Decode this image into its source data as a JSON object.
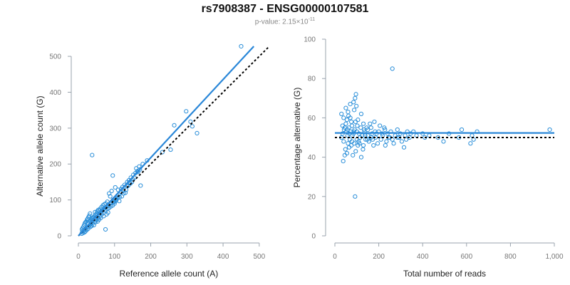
{
  "title": "rs7908387 - ENSG00000107581",
  "subtitle": {
    "prefix": "p-value: 2.15×10",
    "exponent": "-11"
  },
  "colors": {
    "points": "#2b8fd9",
    "fit_line": "#2a87d8",
    "reference_line": "#000000"
  },
  "chart_data": [
    {
      "type": "scatter",
      "xlabel": "Reference allele count (A)",
      "ylabel": "Alternative allele count (G)",
      "xlim": [
        0,
        520
      ],
      "ylim": [
        0,
        520
      ],
      "xticks": [
        0,
        100,
        200,
        300,
        400,
        500
      ],
      "yticks": [
        0,
        100,
        200,
        300,
        400,
        500
      ],
      "xtick_labels": [
        "0",
        "100",
        "200",
        "300",
        "400",
        "500"
      ],
      "ytick_labels": [
        "0",
        "100",
        "200",
        "300",
        "400",
        "500"
      ],
      "fit_line": {
        "x": [
          0,
          485
        ],
        "y": [
          0,
          528
        ]
      },
      "reference_line": {
        "x": [
          0,
          525
        ],
        "y": [
          0,
          525
        ]
      },
      "points": [
        [
          450,
          528
        ],
        [
          298,
          347
        ],
        [
          265,
          308
        ],
        [
          310,
          318
        ],
        [
          315,
          305
        ],
        [
          328,
          286
        ],
        [
          255,
          240
        ],
        [
          232,
          233
        ],
        [
          190,
          210
        ],
        [
          178,
          200
        ],
        [
          168,
          193
        ],
        [
          160,
          188
        ],
        [
          163,
          180
        ],
        [
          152,
          170
        ],
        [
          158,
          175
        ],
        [
          145,
          162
        ],
        [
          140,
          155
        ],
        [
          135,
          150
        ],
        [
          128,
          142
        ],
        [
          122,
          136
        ],
        [
          118,
          130
        ],
        [
          110,
          128
        ],
        [
          102,
          135
        ],
        [
          95,
          168
        ],
        [
          38,
          225
        ],
        [
          172,
          140
        ],
        [
          75,
          18
        ],
        [
          85,
          118
        ],
        [
          88,
          110
        ],
        [
          92,
          125
        ],
        [
          96,
          100
        ],
        [
          98,
          95
        ],
        [
          100,
          90
        ],
        [
          104,
          98
        ],
        [
          108,
          105
        ],
        [
          112,
          115
        ],
        [
          80,
          95
        ],
        [
          76,
          90
        ],
        [
          72,
          88
        ],
        [
          68,
          85
        ],
        [
          64,
          80
        ],
        [
          60,
          75
        ],
        [
          58,
          70
        ],
        [
          55,
          72
        ],
        [
          52,
          68
        ],
        [
          50,
          62
        ],
        [
          48,
          58
        ],
        [
          46,
          66
        ],
        [
          44,
          55
        ],
        [
          42,
          52
        ],
        [
          40,
          50
        ],
        [
          38,
          48
        ],
        [
          36,
          45
        ],
        [
          34,
          42
        ],
        [
          32,
          62
        ],
        [
          30,
          56
        ],
        [
          28,
          52
        ],
        [
          26,
          48
        ],
        [
          24,
          45
        ],
        [
          22,
          40
        ],
        [
          20,
          38
        ],
        [
          18,
          35
        ],
        [
          16,
          30
        ],
        [
          14,
          25
        ],
        [
          12,
          22
        ],
        [
          10,
          18
        ],
        [
          15,
          15
        ],
        [
          20,
          20
        ],
        [
          25,
          25
        ],
        [
          30,
          28
        ],
        [
          35,
          33
        ],
        [
          40,
          35
        ],
        [
          45,
          40
        ],
        [
          50,
          45
        ],
        [
          55,
          50
        ],
        [
          60,
          55
        ],
        [
          65,
          60
        ],
        [
          70,
          65
        ],
        [
          75,
          70
        ],
        [
          80,
          75
        ],
        [
          85,
          78
        ],
        [
          90,
          82
        ],
        [
          95,
          85
        ],
        [
          100,
          95
        ],
        [
          105,
          100
        ],
        [
          120,
          110
        ],
        [
          125,
          118
        ],
        [
          130,
          120
        ],
        [
          135,
          138
        ],
        [
          142,
          148
        ],
        [
          148,
          150
        ],
        [
          150,
          158
        ],
        [
          155,
          162
        ],
        [
          165,
          178
        ],
        [
          170,
          185
        ],
        [
          82,
          65
        ],
        [
          78,
          60
        ],
        [
          70,
          55
        ],
        [
          62,
          50
        ],
        [
          57,
          45
        ],
        [
          53,
          40
        ],
        [
          47,
          38
        ],
        [
          43,
          30
        ],
        [
          37,
          28
        ],
        [
          33,
          25
        ],
        [
          27,
          20
        ],
        [
          23,
          16
        ],
        [
          19,
          12
        ],
        [
          17,
          10
        ],
        [
          13,
          8
        ],
        [
          11,
          12
        ],
        [
          9,
          6
        ],
        [
          26,
          35
        ],
        [
          31,
          40
        ],
        [
          36,
          38
        ],
        [
          41,
          44
        ],
        [
          46,
          48
        ],
        [
          51,
          52
        ],
        [
          56,
          60
        ],
        [
          61,
          65
        ],
        [
          66,
          70
        ],
        [
          71,
          76
        ],
        [
          76,
          80
        ],
        [
          81,
          84
        ],
        [
          86,
          88
        ],
        [
          91,
          92
        ],
        [
          96,
          96
        ],
        [
          102,
          102
        ],
        [
          108,
          112
        ],
        [
          114,
          108
        ],
        [
          118,
          122
        ],
        [
          124,
          126
        ],
        [
          132,
          128
        ],
        [
          138,
          140
        ],
        [
          144,
          146
        ],
        [
          113,
          97
        ]
      ]
    },
    {
      "type": "scatter",
      "xlabel": "Total number of reads",
      "ylabel": "Percentage alternative (G)",
      "xlim": [
        0,
        1000
      ],
      "ylim": [
        0,
        100
      ],
      "xticks": [
        0,
        200,
        400,
        600,
        800,
        1000
      ],
      "yticks": [
        0,
        20,
        40,
        60,
        80,
        100
      ],
      "xtick_labels": [
        "0",
        "200",
        "400",
        "600",
        "800",
        "1,000"
      ],
      "ytick_labels": [
        "0",
        "20",
        "40",
        "60",
        "80",
        "100"
      ],
      "fit_line": {
        "x": [
          0,
          1000
        ],
        "y": [
          52.3,
          52.3
        ]
      },
      "reference_line": {
        "x": [
          0,
          1000
        ],
        "y": [
          50,
          50
        ]
      },
      "points": [
        [
          262,
          85
        ],
        [
          92,
          20
        ],
        [
          979,
          54
        ],
        [
          96,
          72
        ],
        [
          92,
          70
        ],
        [
          85,
          68
        ],
        [
          70,
          67
        ],
        [
          98,
          66
        ],
        [
          50,
          65
        ],
        [
          60,
          63
        ],
        [
          88,
          64
        ],
        [
          30,
          62
        ],
        [
          40,
          60
        ],
        [
          55,
          59
        ],
        [
          62,
          61
        ],
        [
          120,
          62
        ],
        [
          75,
          58
        ],
        [
          105,
          59
        ],
        [
          130,
          57
        ],
        [
          145,
          55
        ],
        [
          160,
          57
        ],
        [
          180,
          58
        ],
        [
          205,
          56
        ],
        [
          225,
          55
        ],
        [
          35,
          56
        ],
        [
          45,
          55
        ],
        [
          52,
          53
        ],
        [
          58,
          54
        ],
        [
          65,
          52
        ],
        [
          72,
          53
        ],
        [
          80,
          51
        ],
        [
          85,
          52
        ],
        [
          90,
          54
        ],
        [
          100,
          53
        ],
        [
          110,
          52
        ],
        [
          115,
          50
        ],
        [
          125,
          51
        ],
        [
          135,
          53
        ],
        [
          140,
          49
        ],
        [
          150,
          51
        ],
        [
          155,
          48
        ],
        [
          165,
          50
        ],
        [
          170,
          52
        ],
        [
          185,
          50
        ],
        [
          195,
          47
        ],
        [
          210,
          49
        ],
        [
          218,
          51
        ],
        [
          235,
          48
        ],
        [
          240,
          52
        ],
        [
          250,
          50
        ],
        [
          255,
          53
        ],
        [
          268,
          47
        ],
        [
          275,
          51
        ],
        [
          285,
          50
        ],
        [
          298,
          52
        ],
        [
          305,
          48
        ],
        [
          315,
          45
        ],
        [
          320,
          51
        ],
        [
          330,
          53
        ],
        [
          340,
          50
        ],
        [
          345,
          52
        ],
        [
          358,
          53
        ],
        [
          372,
          51
        ],
        [
          400,
          52
        ],
        [
          410,
          50
        ],
        [
          430,
          51
        ],
        [
          470,
          50
        ],
        [
          495,
          48
        ],
        [
          520,
          52
        ],
        [
          565,
          50
        ],
        [
          578,
          54
        ],
        [
          618,
          47
        ],
        [
          625,
          51
        ],
        [
          632,
          49
        ],
        [
          648,
          53
        ],
        [
          30,
          50
        ],
        [
          40,
          48
        ],
        [
          48,
          44
        ],
        [
          55,
          42
        ],
        [
          65,
          45
        ],
        [
          75,
          46
        ],
        [
          82,
          41
        ],
        [
          95,
          43
        ],
        [
          105,
          46
        ],
        [
          112,
          47
        ],
        [
          120,
          40
        ],
        [
          128,
          44
        ],
        [
          38,
          38
        ],
        [
          45,
          41
        ],
        [
          60,
          47
        ],
        [
          68,
          49
        ],
        [
          78,
          48
        ],
        [
          88,
          47
        ],
        [
          100,
          49
        ],
        [
          108,
          48
        ],
        [
          130,
          46
        ],
        [
          138,
          51
        ],
        [
          148,
          49
        ],
        [
          176,
          46
        ],
        [
          190,
          52
        ],
        [
          200,
          53
        ],
        [
          230,
          46
        ],
        [
          245,
          50
        ],
        [
          262,
          49
        ],
        [
          293,
          50
        ],
        [
          325,
          49
        ],
        [
          35,
          52
        ],
        [
          42,
          54
        ],
        [
          50,
          57
        ],
        [
          58,
          51
        ],
        [
          64,
          55
        ],
        [
          70,
          60
        ],
        [
          78,
          56
        ],
        [
          86,
          53
        ],
        [
          94,
          58
        ],
        [
          102,
          56
        ],
        [
          118,
          55
        ],
        [
          133,
          54
        ],
        [
          150,
          54
        ],
        [
          165,
          55
        ],
        [
          172,
          49
        ],
        [
          183,
          53
        ],
        [
          215,
          52
        ],
        [
          228,
          54
        ],
        [
          285,
          54
        ]
      ]
    }
  ]
}
